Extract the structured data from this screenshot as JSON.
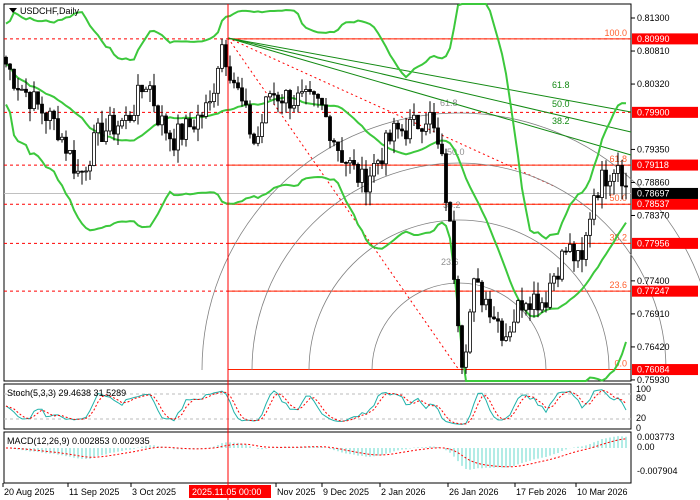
{
  "window": {
    "symbol_title": "USDCHF,Daily"
  },
  "colors": {
    "bollinger": "#3cc83c",
    "fib_level": "#ff2200",
    "fan": "#138a13",
    "arc": "#808080",
    "price_box": "#ff0000",
    "current_box": "#000000",
    "stoch_main": "#20b2aa",
    "stoch_signal": "#ff0000",
    "macd_hist": "#66d9cc",
    "macd_signal": "#ff0000",
    "crosshair": "#ff0000"
  },
  "price_axis": {
    "ticks": [
      "0.81300",
      "0.80810",
      "0.80320",
      "0.79350",
      "0.78860",
      "0.78370",
      "0.77400",
      "0.76910",
      "0.76420",
      "0.75930"
    ],
    "tick_values": [
      0.813,
      0.8081,
      0.8032,
      0.7935,
      0.7886,
      0.7837,
      0.774,
      0.7691,
      0.7642,
      0.7593
    ],
    "marked": [
      {
        "label": "0.80990",
        "value": 0.8099
      },
      {
        "label": "0.79900",
        "value": 0.799
      },
      {
        "label": "0.79118",
        "value": 0.79118
      },
      {
        "label": "0.78537",
        "value": 0.78537
      },
      {
        "label": "0.77956",
        "value": 0.77956
      },
      {
        "label": "0.77247",
        "value": 0.77247
      },
      {
        "label": "0.76084",
        "value": 0.76084
      }
    ],
    "current": {
      "label": "0.78697",
      "value": 0.78697
    }
  },
  "fib_retracement": [
    {
      "label": "100.0",
      "value": 0.8099
    },
    {
      "label": "61.8",
      "value": 0.79118
    },
    {
      "label": "50.0",
      "value": 0.78537
    },
    {
      "label": "38.2",
      "value": 0.77956
    },
    {
      "label": "23.6",
      "value": 0.77247
    },
    {
      "label": "0.0",
      "value": 0.76084
    }
  ],
  "fib_fan_labels": [
    "61.8",
    "50.0",
    "38.2"
  ],
  "fib_arc_labels": [
    "61.8",
    "50.0",
    "38.2",
    "23.6"
  ],
  "dashed_levels": [
    0.8099,
    0.799,
    0.79118,
    0.78537,
    0.77956,
    0.77247
  ],
  "stochastic": {
    "label": "Stoch(5,3,3) 29.4638 31.5289",
    "axis": [
      "100",
      "80",
      "20",
      "0"
    ]
  },
  "macd": {
    "label": "MACD(12,26,9) 0.002853 0.002935",
    "axis": [
      "0.003773",
      "0.00",
      "-0.007904"
    ]
  },
  "time_axis": {
    "labels": [
      "20 Aug 2025",
      "11 Sep 2025",
      "3 Oct 2025",
      "Nov 2025",
      "9 Dec 2025",
      "2 Jan 2026",
      "26 Jan 2026",
      "17 Feb 2026",
      "10 Mar 2026"
    ],
    "cursor_label": "2025.11.05 00:00"
  },
  "chart_data": {
    "type": "candlestick",
    "title": "USDCHF,Daily",
    "ylim": [
      0.7593,
      0.813
    ],
    "approx_close": [
      [
        "2025-08-20",
        0.807
      ],
      [
        "2025-08-24",
        0.804
      ],
      [
        "2025-09-01",
        0.8
      ],
      [
        "2025-09-08",
        0.797
      ],
      [
        "2025-09-16",
        0.7895
      ],
      [
        "2025-09-23",
        0.796
      ],
      [
        "2025-10-03",
        0.798
      ],
      [
        "2025-10-10",
        0.804
      ],
      [
        "2025-10-14",
        0.798
      ],
      [
        "2025-10-19",
        0.795
      ],
      [
        "2025-10-25",
        0.797
      ],
      [
        "2025-11-01",
        0.8
      ],
      [
        "2025-11-05",
        0.8095
      ],
      [
        "2025-11-10",
        0.803
      ],
      [
        "2025-11-17",
        0.794
      ],
      [
        "2025-11-22",
        0.802
      ],
      [
        "2025-11-30",
        0.801
      ],
      [
        "2025-12-10",
        0.8
      ],
      [
        "2025-12-17",
        0.793
      ],
      [
        "2025-12-25",
        0.7885
      ],
      [
        "2026-01-05",
        0.796
      ],
      [
        "2026-01-12",
        0.797
      ],
      [
        "2026-01-17",
        0.799
      ],
      [
        "2026-01-22",
        0.791
      ],
      [
        "2026-01-25",
        0.78
      ],
      [
        "2026-01-29",
        0.762
      ],
      [
        "2026-02-02",
        0.773
      ],
      [
        "2026-02-07",
        0.771
      ],
      [
        "2026-02-13",
        0.766
      ],
      [
        "2026-02-20",
        0.772
      ],
      [
        "2026-02-27",
        0.771
      ],
      [
        "2026-03-01",
        0.774
      ],
      [
        "2026-03-07",
        0.779
      ],
      [
        "2026-03-12",
        0.776
      ],
      [
        "2026-03-16",
        0.787
      ],
      [
        "2026-03-21",
        0.79
      ],
      [
        "2026-03-25",
        0.792
      ],
      [
        "2026-03-28",
        0.787
      ]
    ]
  }
}
